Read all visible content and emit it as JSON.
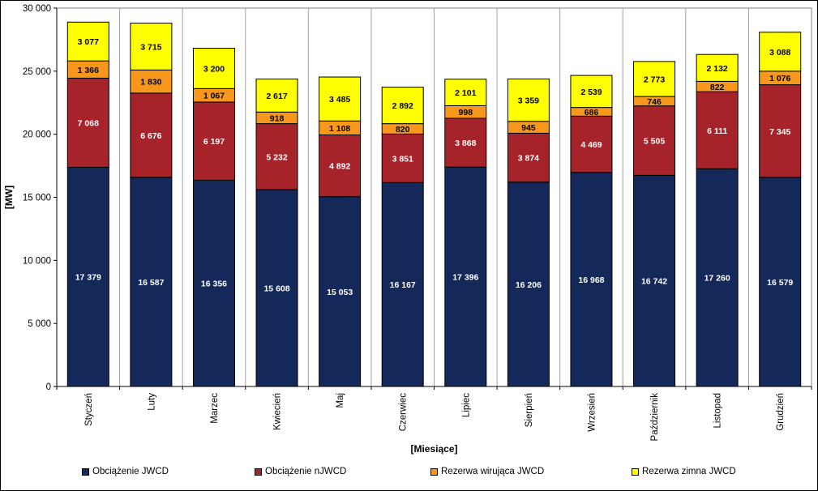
{
  "chart_data": {
    "type": "bar",
    "stacked": true,
    "categories": [
      "Styczeń",
      "Luty",
      "Marzec",
      "Kwiecień",
      "Maj",
      "Czerwiec",
      "Lipiec",
      "Sierpień",
      "Wrzesień",
      "Październik",
      "Listopad",
      "Grudzień"
    ],
    "series": [
      {
        "name": "Obciążenie JWCD",
        "color": "#14285a",
        "label_color": "#ffffff",
        "values": [
          17379,
          16587,
          16356,
          15608,
          15053,
          16167,
          17396,
          16206,
          16968,
          16742,
          17260,
          16579
        ],
        "labels": [
          "17 379",
          "16 587",
          "16 356",
          "15 608",
          "15 053",
          "16 167",
          "17 396",
          "16 206",
          "16 968",
          "16 742",
          "17 260",
          "16 579"
        ]
      },
      {
        "name": "Obciążenie nJWCD",
        "color": "#a6232a",
        "label_color": "#ffffff",
        "values": [
          7068,
          6676,
          6197,
          5232,
          4892,
          3851,
          3868,
          3874,
          4469,
          5505,
          6111,
          7345
        ],
        "labels": [
          "7 068",
          "6 676",
          "6 197",
          "5 232",
          "4 892",
          "3 851",
          "3 868",
          "3 874",
          "4 469",
          "5 505",
          "6 111",
          "7 345"
        ]
      },
      {
        "name": "Rezerwa wirująca JWCD",
        "color": "#f7981d",
        "label_color": "#000000",
        "values": [
          1366,
          1830,
          1067,
          918,
          1108,
          820,
          998,
          945,
          686,
          746,
          822,
          1076
        ],
        "labels": [
          "1 366",
          "1 830",
          "1 067",
          "918",
          "1 108",
          "820",
          "998",
          "945",
          "686",
          "746",
          "822",
          "1 076"
        ]
      },
      {
        "name": "Rezerwa zimna JWCD",
        "color": "#ffff00",
        "label_color": "#000000",
        "values": [
          3077,
          3715,
          3200,
          2617,
          3485,
          2892,
          2101,
          3359,
          2539,
          2773,
          2132,
          3088
        ],
        "labels": [
          "3 077",
          "3 715",
          "3 200",
          "2 617",
          "3 485",
          "2 892",
          "2 101",
          "3 359",
          "2 539",
          "2 773",
          "2 132",
          "3 088"
        ]
      }
    ],
    "ylabel": "[MW]",
    "xlabel": "[Miesiące]",
    "ylim": [
      0,
      30000
    ],
    "yticks": [
      0,
      5000,
      10000,
      15000,
      20000,
      25000,
      30000
    ],
    "ytick_labels": [
      "0",
      "5 000",
      "10 000",
      "15 000",
      "20 000",
      "25 000",
      "30 000"
    ],
    "grid": "vertical category separators",
    "plot_background": "#ffffff",
    "legend_position": "bottom"
  }
}
